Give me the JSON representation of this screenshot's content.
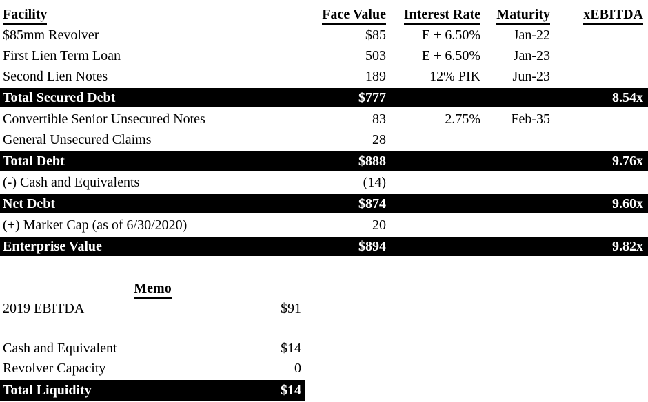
{
  "colors": {
    "page_bg": "#ffffff",
    "text": "#000000",
    "total_bar_bg": "#000000",
    "total_bar_text": "#ffffff"
  },
  "cap_table": {
    "headers": {
      "facility": "Facility",
      "face_value": "Face Value",
      "interest_rate": "Interest Rate",
      "maturity": "Maturity",
      "xebitda": "xEBITDA"
    },
    "rows": [
      {
        "facility": "$85mm Revolver",
        "face_value": "$85",
        "interest_rate": "E + 6.50%",
        "maturity": "Jan-22",
        "xebitda": ""
      },
      {
        "facility": "First Lien Term Loan",
        "face_value": "503",
        "interest_rate": "E + 6.50%",
        "maturity": "Jan-23",
        "xebitda": ""
      },
      {
        "facility": "Second Lien Notes",
        "face_value": "189",
        "interest_rate": "12% PIK",
        "maturity": "Jun-23",
        "xebitda": ""
      },
      {
        "facility": "Total Secured Debt",
        "face_value": "$777",
        "interest_rate": "",
        "maturity": "",
        "xebitda": "8.54x"
      },
      {
        "facility": "Convertible Senior Unsecured Notes",
        "face_value": "83",
        "interest_rate": "2.75%",
        "maturity": "Feb-35",
        "xebitda": ""
      },
      {
        "facility": "General Unsecured Claims",
        "face_value": "28",
        "interest_rate": "",
        "maturity": "",
        "xebitda": ""
      },
      {
        "facility": "Total Debt",
        "face_value": "$888",
        "interest_rate": "",
        "maturity": "",
        "xebitda": "9.76x"
      },
      {
        "facility": "(-) Cash and Equivalents",
        "face_value": "(14)",
        "interest_rate": "",
        "maturity": "",
        "xebitda": ""
      },
      {
        "facility": "Net Debt",
        "face_value": "$874",
        "interest_rate": "",
        "maturity": "",
        "xebitda": "9.60x"
      },
      {
        "facility": "(+) Market Cap (as of 6/30/2020)",
        "face_value": "20",
        "interest_rate": "",
        "maturity": "",
        "xebitda": ""
      },
      {
        "facility": "Enterprise Value",
        "face_value": "$894",
        "interest_rate": "",
        "maturity": "",
        "xebitda": "9.82x"
      }
    ]
  },
  "memo": {
    "title": "Memo",
    "rows": [
      {
        "label": "2019 EBITDA",
        "value": "$91"
      },
      {
        "label": "Cash and Equivalent",
        "value": "$14"
      },
      {
        "label": "Revolver Capacity",
        "value": "0"
      }
    ],
    "total": {
      "label": "Total Liquidity",
      "value": "$14"
    }
  }
}
